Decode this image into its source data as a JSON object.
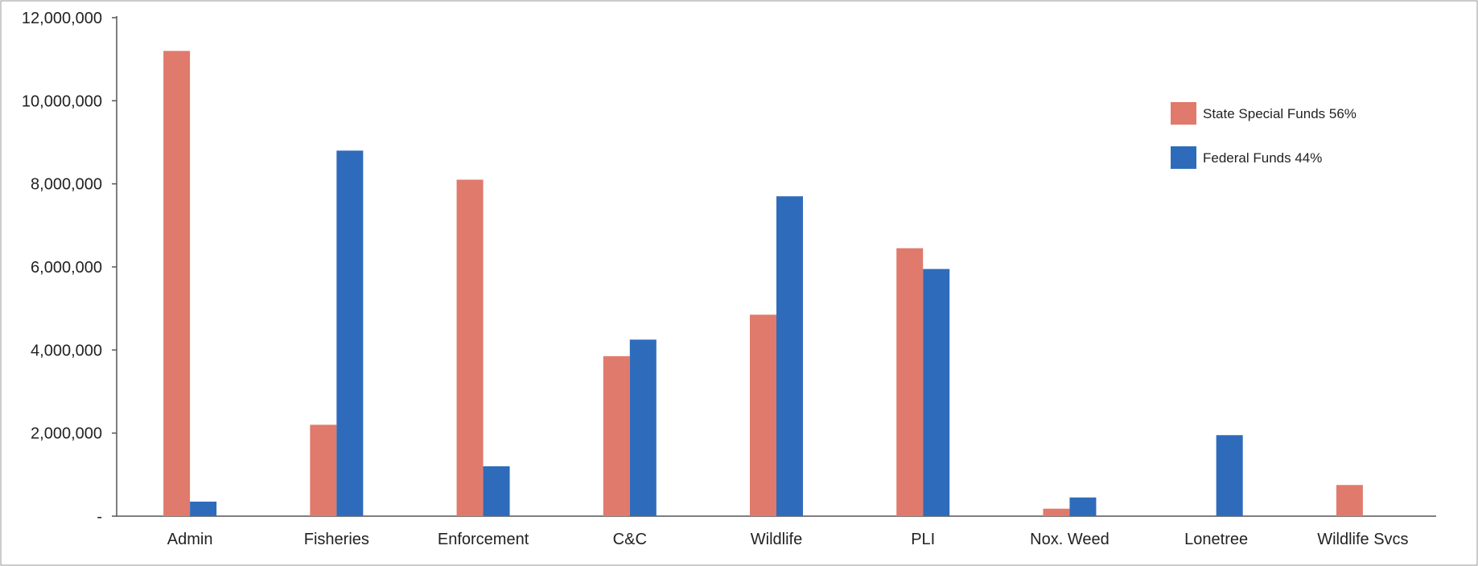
{
  "chart_data": {
    "type": "bar",
    "categories": [
      "Admin",
      "Fisheries",
      "Enforcement",
      "C&C",
      "Wildlife",
      "PLI",
      "Nox. Weed",
      "Lonetree",
      "Wildlife Svcs"
    ],
    "series": [
      {
        "name": "State Special Funds 56%",
        "color": "#e07a6c",
        "values": [
          11200000,
          2200000,
          8100000,
          3850000,
          4850000,
          6450000,
          180000,
          0,
          750000
        ]
      },
      {
        "name": "Federal Funds 44%",
        "color": "#2e6bbb",
        "values": [
          350000,
          8800000,
          1200000,
          4250000,
          7700000,
          5950000,
          450000,
          1950000,
          0
        ]
      }
    ],
    "y_ticks": [
      "-",
      "2,000,000",
      "4,000,000",
      "6,000,000",
      "8,000,000",
      "10,000,000",
      "12,000,000"
    ],
    "ylim": [
      0,
      12000000
    ],
    "grid": false,
    "legend_position": "top-right",
    "title": "",
    "xlabel": "",
    "ylabel": ""
  }
}
